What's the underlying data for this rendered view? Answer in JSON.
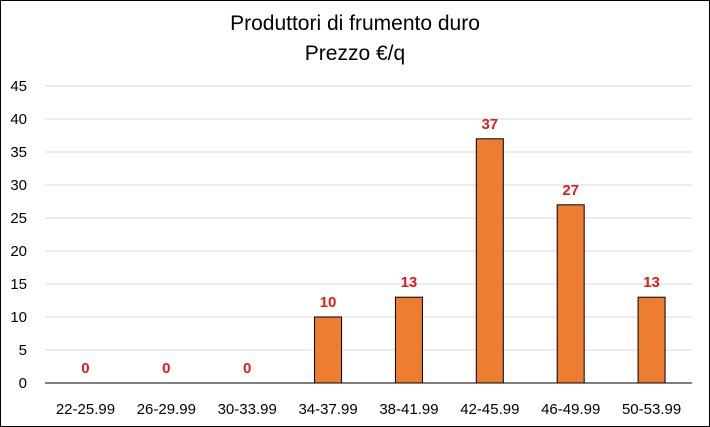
{
  "chart_data": {
    "type": "bar",
    "title": "Produttori di frumento duro",
    "subtitle": "Prezzo €/q",
    "xlabel": "",
    "ylabel": "",
    "categories": [
      "22-25.99",
      "26-29.99",
      "30-33.99",
      "34-37.99",
      "38-41.99",
      "42-45.99",
      "46-49.99",
      "50-53.99"
    ],
    "values": [
      0,
      0,
      0,
      10,
      13,
      37,
      27,
      13
    ],
    "data_labels": [
      "0",
      "0",
      "0",
      "10",
      "13",
      "37",
      "27",
      "13"
    ],
    "ylim": [
      0,
      45
    ],
    "yticks": [
      0,
      5,
      10,
      15,
      20,
      25,
      30,
      35,
      40,
      45
    ],
    "ytick_labels": [
      "0",
      "5",
      "10",
      "15",
      "20",
      "25",
      "30",
      "35",
      "40",
      "45"
    ],
    "grid": true,
    "legend": "none",
    "colors": {
      "bar_fill": "#ED7D31",
      "bar_stroke": "#000000",
      "data_label": "#E31A1C",
      "gridline": "#D9D9D9",
      "axis": "#000000"
    }
  }
}
